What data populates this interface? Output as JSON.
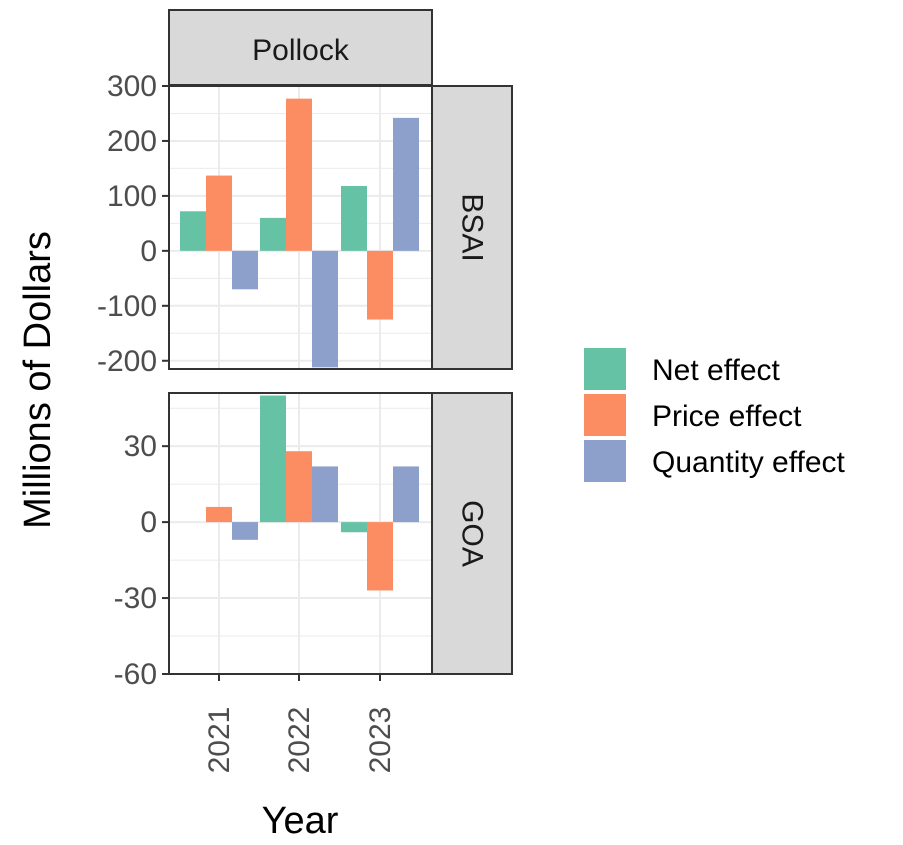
{
  "chart_data": {
    "type": "bar",
    "column_strip": "Pollock",
    "xlabel": "Year",
    "ylabel": "Millions of Dollars",
    "categories": [
      "2021",
      "2022",
      "2023"
    ],
    "legend": {
      "position": "right",
      "entries": [
        "Net effect",
        "Price effect",
        "Quantity effect"
      ]
    },
    "colors": {
      "Net effect": "#66C2A5",
      "Price effect": "#FC8D62",
      "Quantity effect": "#8DA0CB",
      "strip_fill": "#D9D9D9",
      "grid": "#EBEBEB",
      "frame": "#333333"
    },
    "panels": [
      {
        "strip": "BSAI",
        "ylim": [
          -215,
          300
        ],
        "yticks": [
          -200,
          -100,
          0,
          100,
          200,
          300
        ],
        "grid": true,
        "series": [
          {
            "name": "Net effect",
            "values": [
              72,
              60,
              118
            ]
          },
          {
            "name": "Price effect",
            "values": [
              137,
              277,
              -125
            ]
          },
          {
            "name": "Quantity effect",
            "values": [
              -70,
              -212,
              242
            ]
          }
        ]
      },
      {
        "strip": "GOA",
        "ylim": [
          -60,
          51
        ],
        "yticks": [
          -60,
          -30,
          0,
          30
        ],
        "grid": true,
        "series": [
          {
            "name": "Net effect",
            "values": [
              0,
              50,
              -4
            ]
          },
          {
            "name": "Price effect",
            "values": [
              6,
              28,
              -27
            ]
          },
          {
            "name": "Quantity effect",
            "values": [
              -7,
              22,
              22
            ]
          }
        ]
      }
    ]
  }
}
